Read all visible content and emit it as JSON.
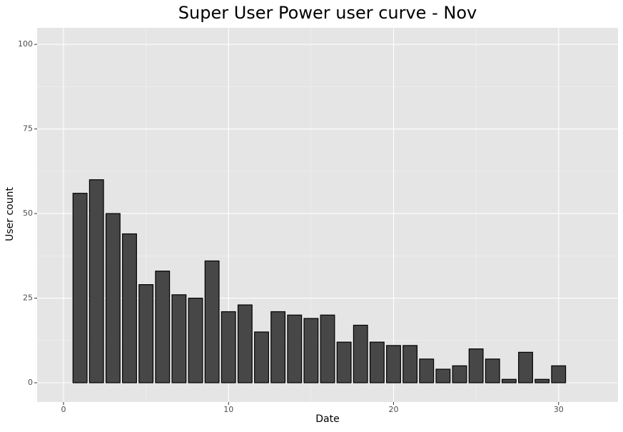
{
  "chart_data": {
    "type": "bar",
    "title": "Super User Power user curve - Nov",
    "x_label": "Date",
    "y_label": "User count",
    "x": [
      1,
      2,
      3,
      4,
      5,
      6,
      7,
      8,
      9,
      10,
      11,
      12,
      13,
      14,
      15,
      16,
      17,
      18,
      19,
      20,
      21,
      22,
      23,
      24,
      25,
      26,
      27,
      28,
      29,
      30
    ],
    "values": [
      56,
      60,
      50,
      44,
      29,
      33,
      26,
      25,
      36,
      21,
      23,
      15,
      21,
      20,
      19,
      20,
      12,
      17,
      12,
      11,
      11,
      7,
      4,
      5,
      10,
      7,
      1,
      9,
      1,
      5
    ],
    "color": "#474747",
    "xlim": [
      -1.6,
      33.6
    ],
    "xticks": [
      0,
      10,
      20,
      30
    ],
    "ylim": [
      -5.7,
      104.9
    ],
    "yticks": [
      0,
      25,
      50,
      75,
      100
    ],
    "grid": true
  }
}
